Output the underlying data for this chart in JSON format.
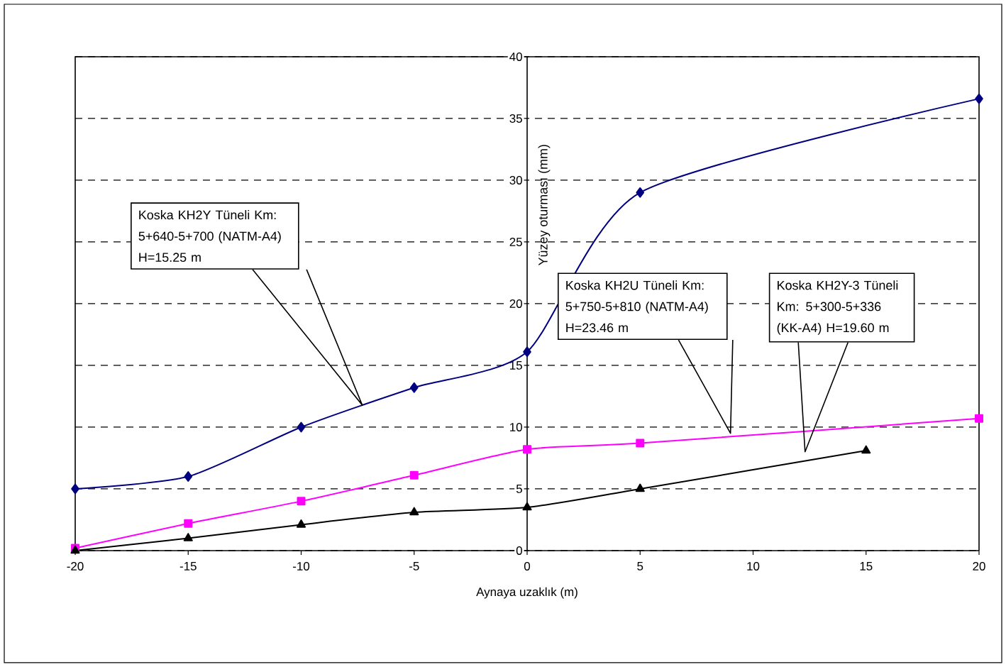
{
  "chart_data": {
    "type": "line",
    "xlabel": "Aynaya uzaklık (m)",
    "ylabel": "Yüzey oturması (mm)",
    "xlim": [
      -20,
      20
    ],
    "xticks": [
      -20,
      -15,
      -10,
      -5,
      0,
      5,
      10,
      15,
      20
    ],
    "ylim": [
      0,
      40
    ],
    "yticks": [
      0,
      5,
      10,
      15,
      20,
      25,
      30,
      35,
      40
    ],
    "grid": "y",
    "line_style": "solid",
    "series": [
      {
        "color": "#000080",
        "marker": "diamond",
        "x": [
          -20,
          -15,
          -10,
          -5,
          0,
          5,
          20
        ],
        "values": [
          5,
          6,
          10,
          13.2,
          16.1,
          29,
          36.6
        ]
      },
      {
        "color": "#ff00ff",
        "marker": "square",
        "x": [
          -20,
          -15,
          -10,
          -5,
          0,
          5,
          20
        ],
        "values": [
          0.2,
          2.2,
          4,
          6.1,
          8.2,
          8.7,
          10.7
        ]
      },
      {
        "color": "#000000",
        "marker": "triangle",
        "x": [
          -20,
          -15,
          -10,
          -5,
          0,
          5,
          15
        ],
        "values": [
          0,
          1,
          2.1,
          3.1,
          3.5,
          5,
          8.1
        ]
      }
    ],
    "annotations": [
      "Koska KH2Y Tüneli Km: 5+640-5+700  (NATM-A4) H=15.25 m",
      "Koska KH2U Tüneli Km: 5+750-5+810  (NATM-A4) H=23.46 m",
      "Koska KH2Y-3 Tüneli Km: 5+300-5+336 (KK-A4) H=19.60 m"
    ]
  }
}
